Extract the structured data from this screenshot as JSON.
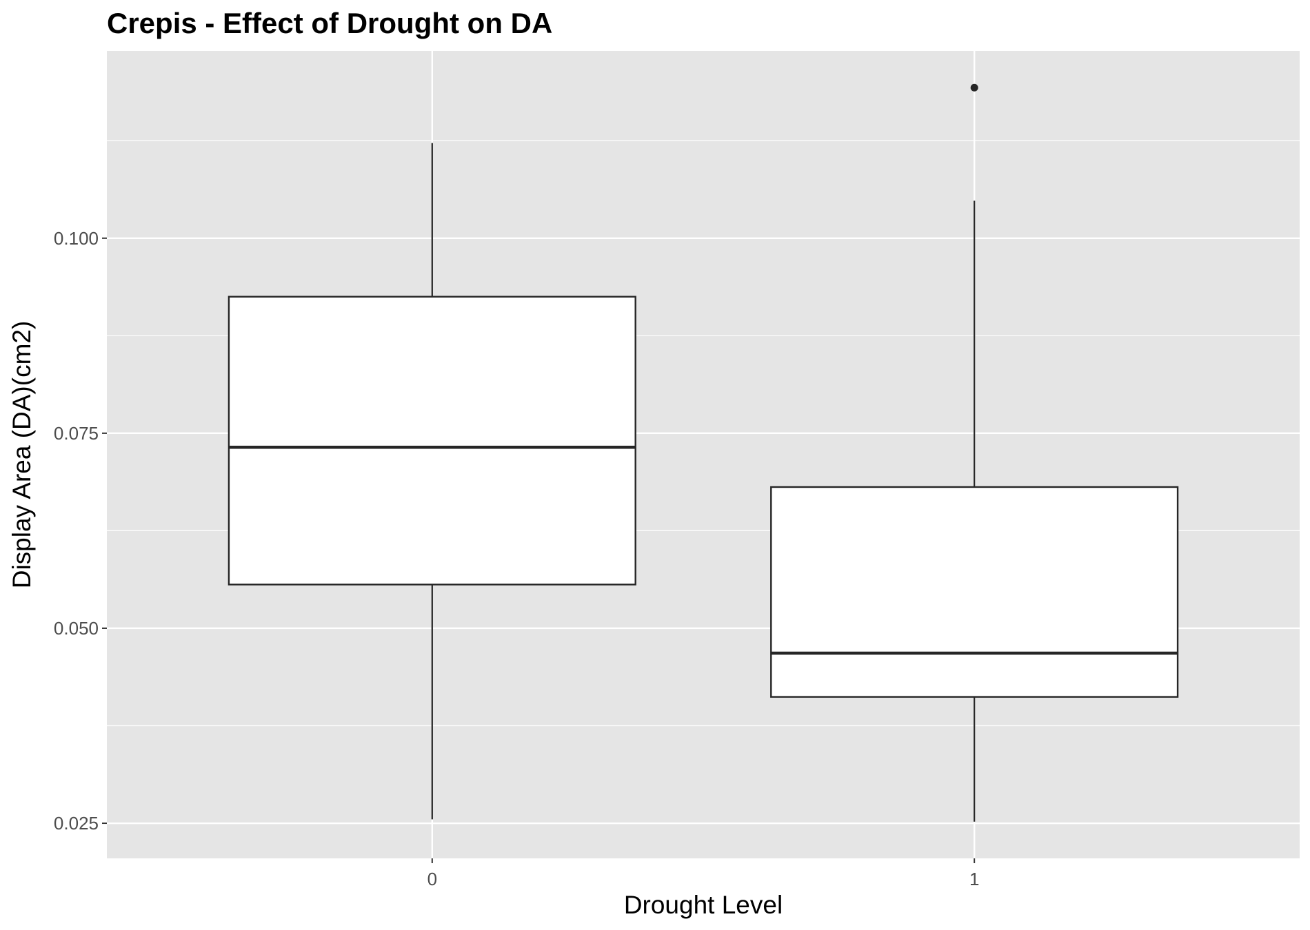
{
  "chart_data": {
    "type": "boxplot",
    "title": "Crepis - Effect of Drought on DA",
    "xlabel": "Drought Level",
    "ylabel": "Display Area (DA)(cm2)",
    "categories": [
      "0",
      "1"
    ],
    "y_ticks": [
      "0.025",
      "0.050",
      "0.075",
      "0.100"
    ],
    "ylim": [
      0.0205,
      0.124
    ],
    "grid": true,
    "boxes": [
      {
        "category": "0",
        "min": 0.0255,
        "q1": 0.0556,
        "median": 0.0732,
        "q3": 0.0925,
        "max": 0.1122,
        "outliers": []
      },
      {
        "category": "1",
        "min": 0.0252,
        "q1": 0.0412,
        "median": 0.0468,
        "q3": 0.0681,
        "max": 0.1048,
        "outliers": [
          0.1193
        ]
      }
    ],
    "colors": {
      "panel": "#e5e5e5",
      "grid": "#ffffff",
      "box_fill": "#ffffff",
      "box_line": "#262626",
      "tick_text": "#4d4d4d"
    }
  }
}
